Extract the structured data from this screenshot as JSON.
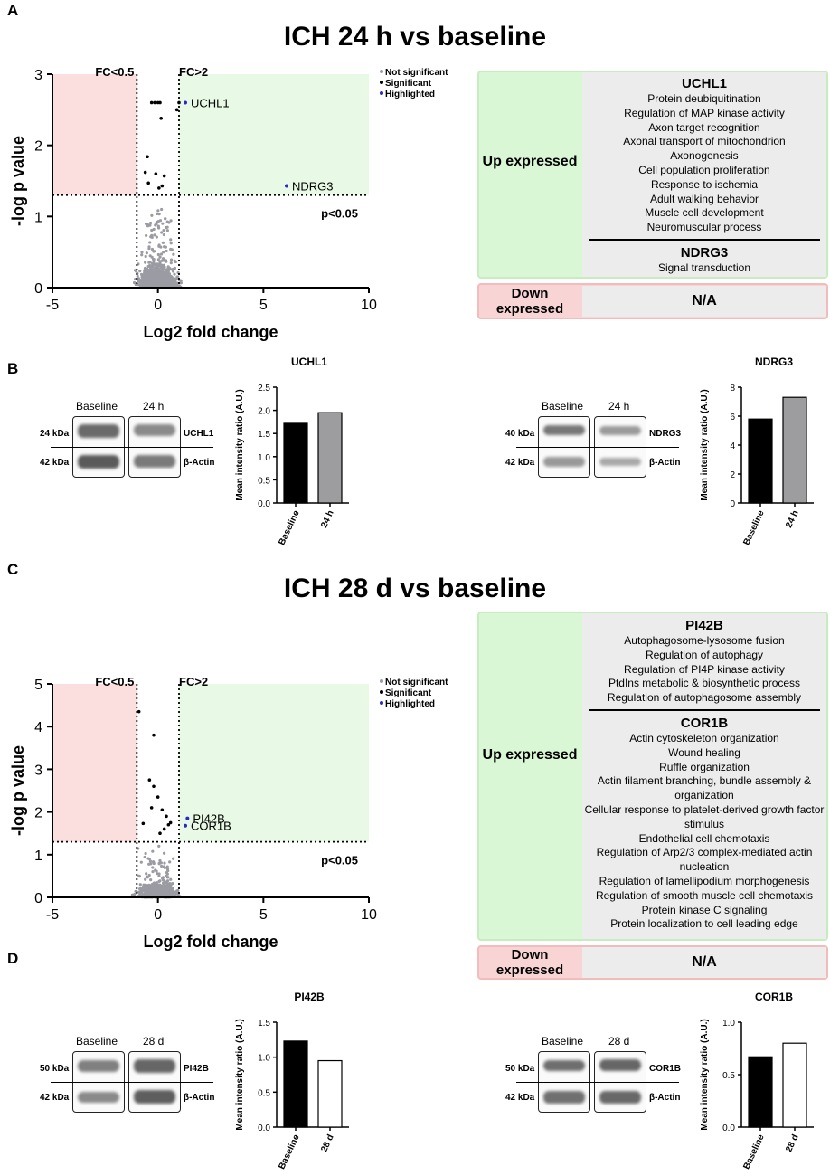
{
  "panels": {
    "a": "A",
    "b": "B",
    "c": "C",
    "d": "D"
  },
  "titles": {
    "a": "ICH 24 h vs baseline",
    "c": "ICH 28 d vs baseline"
  },
  "volcano_labels": {
    "fc_low": "FC<0.5",
    "fc_high": "FC>2",
    "pval": "p<0.05",
    "xlabel": "Log2 fold change",
    "ylabel": "-log p value"
  },
  "legend": {
    "ns": "Not significant",
    "sig": "Significant",
    "hl": "Highlighted"
  },
  "colors": {
    "up_bg": "#d9f7d4",
    "down_bg": "#f9d4d4",
    "ns_point": "#9b9ba3",
    "sig_point": "#000000",
    "hl_point": "#2a2acc",
    "bar_baseline": "#000000",
    "bar_24h": "#9d9d9f",
    "bar_28d": "#ffffff"
  },
  "box_a": {
    "up_label": "Up expressed",
    "down_label": "Down expressed",
    "down_value": "N/A",
    "genes": [
      {
        "name": "UCHL1",
        "terms": [
          "Protein deubiquitination",
          "Regulation of MAP kinase activity",
          "Axon target recognition",
          "Axonal transport of mitochondrion",
          "Axonogenesis",
          "Cell population proliferation",
          "Response to ischemia",
          "Adult walking behavior",
          "Muscle cell development",
          "Neuromuscular process"
        ]
      },
      {
        "name": "NDRG3",
        "terms": [
          "Signal transduction"
        ]
      }
    ]
  },
  "box_c": {
    "up_label": "Up expressed",
    "down_label": "Down expressed",
    "down_value": "N/A",
    "genes": [
      {
        "name": "PI42B",
        "terms": [
          "Autophagosome-lysosome fusion",
          "Regulation of autophagy",
          "Regulation of PI4P kinase activity",
          "PtdIns metabolic & biosynthetic process",
          "Regulation of autophagosome assembly"
        ]
      },
      {
        "name": "COR1B",
        "terms": [
          "Actin cytoskeleton organization",
          "Wound healing",
          "Ruffle organization",
          "Actin filament branching, bundle assembly & organization",
          "Cellular response to platelet-derived growth factor stimulus",
          "Endothelial cell chemotaxis",
          "Regulation of Arp2/3 complex-mediated actin nucleation",
          "Regulation of lamellipodium morphogenesis",
          "Regulation of smooth muscle cell chemotaxis",
          "Protein kinase C signaling",
          "Protein localization to cell leading edge"
        ]
      }
    ]
  },
  "blots": {
    "uchl1": {
      "col1": "Baseline",
      "col2": "24 h",
      "kda1": "24 kDa",
      "kda2": "42 kDa",
      "prot1": "UCHL1",
      "prot2": "β-Actin"
    },
    "ndrg3": {
      "col1": "Baseline",
      "col2": "24 h",
      "kda1": "40 kDa",
      "kda2": "42 kDa",
      "prot1": "NDRG3",
      "prot2": "β-Actin"
    },
    "pi42b": {
      "col1": "Baseline",
      "col2": "28 d",
      "kda1": "50 kDa",
      "kda2": "42 kDa",
      "prot1": "PI42B",
      "prot2": "β-Actin"
    },
    "cor1b": {
      "col1": "Baseline",
      "col2": "28 d",
      "kda1": "50 kDa",
      "kda2": "42 kDa",
      "prot1": "COR1B",
      "prot2": "β-Actin"
    }
  },
  "chart_data": [
    {
      "id": "volcano_a",
      "type": "scatter",
      "title": "ICH 24 h vs baseline",
      "xlabel": "Log2 fold change",
      "ylabel": "-log p value",
      "xlim": [
        -5,
        10
      ],
      "ylim": [
        0,
        3
      ],
      "xticks": [
        -5,
        0,
        5,
        10
      ],
      "yticks": [
        0,
        1,
        2,
        3
      ],
      "thresholds": {
        "log2fc": [
          -1,
          1
        ],
        "neglogp": 1.3
      },
      "highlighted": [
        {
          "label": "UCHL1",
          "x": 1.3,
          "y": 2.6
        },
        {
          "label": "NDRG3",
          "x": 6.1,
          "y": 1.43
        }
      ],
      "significant": [
        [
          -0.3,
          2.6
        ],
        [
          -0.15,
          2.6
        ],
        [
          0,
          2.6
        ],
        [
          0.1,
          2.6
        ],
        [
          1.0,
          2.6
        ],
        [
          0.9,
          2.5
        ],
        [
          0.15,
          2.38
        ],
        [
          -0.5,
          1.84
        ],
        [
          -0.6,
          1.62
        ],
        [
          -0.45,
          1.47
        ],
        [
          -0.1,
          1.6
        ],
        [
          0.3,
          1.57
        ],
        [
          0.05,
          1.4
        ],
        [
          0.2,
          1.43
        ]
      ]
    },
    {
      "id": "volcano_c",
      "type": "scatter",
      "title": "ICH 28 d vs baseline",
      "xlabel": "Log2 fold change",
      "ylabel": "-log p value",
      "xlim": [
        -5,
        10
      ],
      "ylim": [
        0,
        5
      ],
      "xticks": [
        -5,
        0,
        5,
        10
      ],
      "yticks": [
        0,
        1,
        2,
        3,
        4,
        5
      ],
      "thresholds": {
        "log2fc": [
          -1,
          1
        ],
        "neglogp": 1.3
      },
      "highlighted": [
        {
          "label": "PI42B",
          "x": 1.4,
          "y": 1.85
        },
        {
          "label": "COR1B",
          "x": 1.3,
          "y": 1.68
        }
      ],
      "significant": [
        [
          -0.9,
          4.35
        ],
        [
          -0.2,
          3.8
        ],
        [
          -0.4,
          2.75
        ],
        [
          -0.2,
          2.6
        ],
        [
          0,
          2.35
        ],
        [
          -0.3,
          2.1
        ],
        [
          0.2,
          2.05
        ],
        [
          0.4,
          1.9
        ],
        [
          0.5,
          1.7
        ],
        [
          0.3,
          1.6
        ],
        [
          0.6,
          1.75
        ],
        [
          -0.7,
          1.73
        ],
        [
          0.1,
          1.5
        ]
      ]
    },
    {
      "id": "bar_uchl1",
      "type": "bar",
      "title": "UCHL1",
      "ylabel": "Mean intensity ratio (A.U.)",
      "categories": [
        "Baseline",
        "24 h"
      ],
      "values": [
        1.72,
        1.95
      ],
      "ylim": [
        0,
        2.5
      ],
      "yticks": [
        0.0,
        0.5,
        1.0,
        1.5,
        2.0,
        2.5
      ],
      "tick_decimals": 1,
      "fills": [
        "#000000",
        "#9d9d9f"
      ]
    },
    {
      "id": "bar_ndrg3",
      "type": "bar",
      "title": "NDRG3",
      "ylabel": "Mean intensity ratio (A.U.)",
      "categories": [
        "Baseline",
        "24 h"
      ],
      "values": [
        5.8,
        7.3
      ],
      "ylim": [
        0,
        8
      ],
      "yticks": [
        0,
        2,
        4,
        6,
        8
      ],
      "tick_decimals": 0,
      "fills": [
        "#000000",
        "#9d9d9f"
      ]
    },
    {
      "id": "bar_pi42b",
      "type": "bar",
      "title": "PI42B",
      "ylabel": "Mean intensity ratio (A.U.)",
      "categories": [
        "Baseline",
        "28 d"
      ],
      "values": [
        1.23,
        0.95
      ],
      "ylim": [
        0,
        1.5
      ],
      "yticks": [
        0.0,
        0.5,
        1.0,
        1.5
      ],
      "tick_decimals": 1,
      "fills": [
        "#000000",
        "#ffffff"
      ]
    },
    {
      "id": "bar_cor1b",
      "type": "bar",
      "title": "COR1B",
      "ylabel": "Mean intensity ratio (A.U.)",
      "categories": [
        "Baseline",
        "28 d"
      ],
      "values": [
        0.67,
        0.8
      ],
      "ylim": [
        0,
        1.0
      ],
      "yticks": [
        0.0,
        0.5,
        1.0
      ],
      "tick_decimals": 1,
      "fills": [
        "#000000",
        "#ffffff"
      ]
    }
  ]
}
